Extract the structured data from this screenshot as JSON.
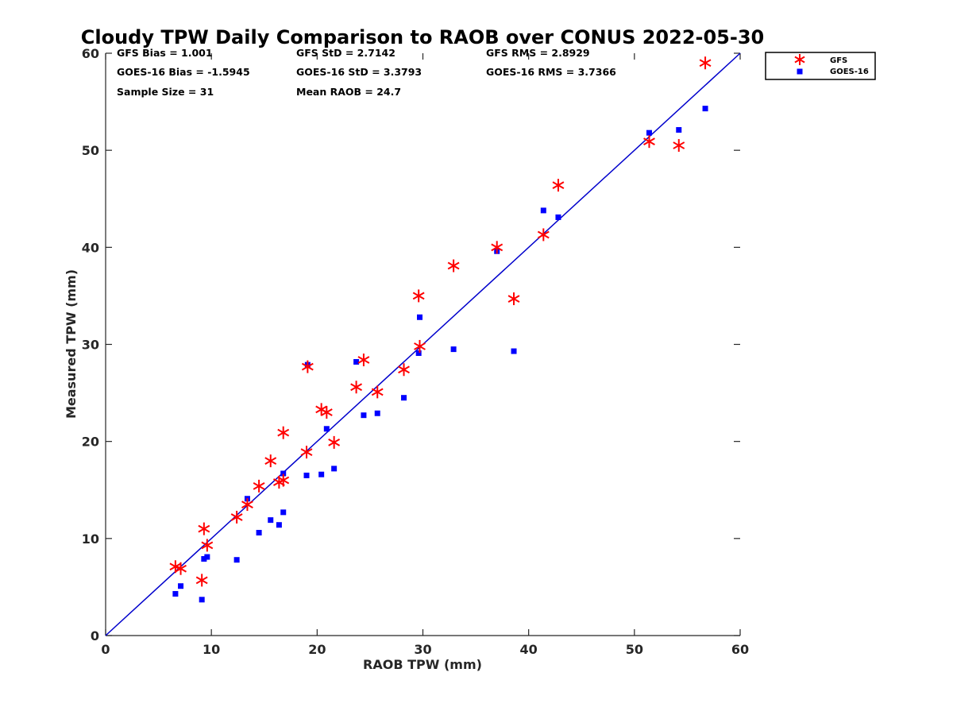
{
  "chart_data": {
    "type": "scatter",
    "title": "Cloudy TPW Daily Comparison to RAOB over CONUS 2022-05-30",
    "xlabel": "RAOB TPW (mm)",
    "ylabel": "Measured TPW (mm)",
    "xlim": [
      0,
      60
    ],
    "ylim": [
      0,
      60
    ],
    "xticks": [
      "0",
      "10",
      "20",
      "30",
      "40",
      "50",
      "60"
    ],
    "yticks": [
      "0",
      "10",
      "20",
      "30",
      "40",
      "50",
      "60"
    ],
    "grid": false,
    "legend_position": "outside top-right",
    "reference_line": {
      "from": [
        0,
        0
      ],
      "to": [
        60,
        60
      ],
      "color": "#0000cc"
    },
    "stats": [
      "GFS Bias = 1.001",
      "GFS StD = 2.7142",
      "GFS RMS = 2.8929",
      "GOES-16 Bias = -1.5945",
      "GOES-16 StD = 3.3793",
      "GOES-16 RMS = 3.7366",
      "Sample Size = 31",
      "Mean RAOB = 24.7"
    ],
    "series": [
      {
        "name": "GFS",
        "color": "#ff0000",
        "marker": "asterisk",
        "points": [
          [
            6.6,
            7.1
          ],
          [
            7.1,
            6.9
          ],
          [
            9.1,
            5.7
          ],
          [
            9.3,
            11.0
          ],
          [
            9.6,
            9.3
          ],
          [
            12.4,
            12.2
          ],
          [
            13.4,
            13.5
          ],
          [
            14.5,
            15.4
          ],
          [
            15.6,
            18.0
          ],
          [
            16.4,
            15.8
          ],
          [
            16.8,
            16.0
          ],
          [
            16.8,
            20.9
          ],
          [
            19.0,
            18.9
          ],
          [
            19.1,
            27.7
          ],
          [
            20.4,
            23.3
          ],
          [
            20.9,
            23.0
          ],
          [
            21.6,
            19.9
          ],
          [
            23.7,
            25.6
          ],
          [
            24.4,
            28.4
          ],
          [
            25.7,
            25.1
          ],
          [
            28.2,
            27.4
          ],
          [
            29.6,
            35.0
          ],
          [
            29.7,
            29.8
          ],
          [
            32.9,
            38.1
          ],
          [
            37.0,
            40.0
          ],
          [
            38.6,
            34.7
          ],
          [
            41.4,
            41.3
          ],
          [
            42.8,
            46.4
          ],
          [
            51.4,
            50.9
          ],
          [
            54.2,
            50.5
          ],
          [
            56.7,
            59.0
          ]
        ]
      },
      {
        "name": "GOES-16",
        "color": "#0000ff",
        "marker": "square",
        "points": [
          [
            6.6,
            4.3
          ],
          [
            7.1,
            5.1
          ],
          [
            9.1,
            3.7
          ],
          [
            9.3,
            7.9
          ],
          [
            9.6,
            8.1
          ],
          [
            12.4,
            7.8
          ],
          [
            13.4,
            14.1
          ],
          [
            14.5,
            10.6
          ],
          [
            15.6,
            11.9
          ],
          [
            16.4,
            11.4
          ],
          [
            16.8,
            12.7
          ],
          [
            16.8,
            16.7
          ],
          [
            19.0,
            16.5
          ],
          [
            19.1,
            27.9
          ],
          [
            20.4,
            16.6
          ],
          [
            20.9,
            21.3
          ],
          [
            21.6,
            17.2
          ],
          [
            23.7,
            28.2
          ],
          [
            24.4,
            22.7
          ],
          [
            25.7,
            22.9
          ],
          [
            28.2,
            24.5
          ],
          [
            29.6,
            29.1
          ],
          [
            29.7,
            32.8
          ],
          [
            32.9,
            29.5
          ],
          [
            37.0,
            39.6
          ],
          [
            38.6,
            29.3
          ],
          [
            41.4,
            43.8
          ],
          [
            42.8,
            43.1
          ],
          [
            51.4,
            51.8
          ],
          [
            54.2,
            52.1
          ],
          [
            56.7,
            54.3
          ]
        ]
      }
    ]
  }
}
